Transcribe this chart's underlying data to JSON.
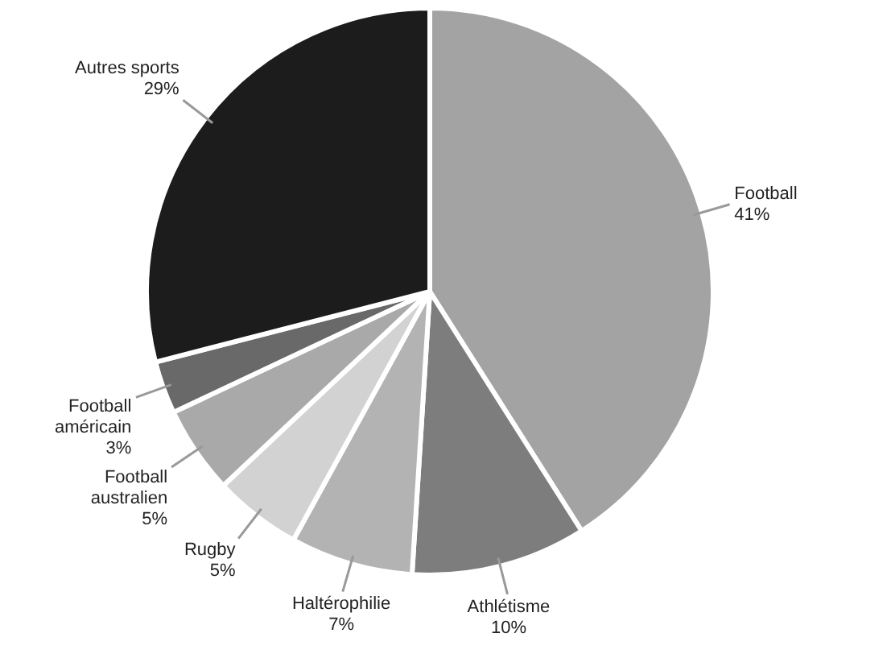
{
  "chart_data": {
    "type": "pie",
    "categories": [
      "Football",
      "Athlétisme",
      "Haltérophilie",
      "Rugby",
      "Football australien",
      "Football américain",
      "Autres sports"
    ],
    "values": [
      41,
      10,
      7,
      5,
      5,
      3,
      29
    ],
    "value_labels": [
      "41%",
      "10%",
      "7%",
      "5%",
      "5%",
      "3%",
      "29%"
    ],
    "colors": [
      "#a3a3a3",
      "#7d7d7d",
      "#b3b3b3",
      "#d2d2d2",
      "#a9a9a9",
      "#696969",
      "#1c1c1c"
    ],
    "legend": false
  }
}
